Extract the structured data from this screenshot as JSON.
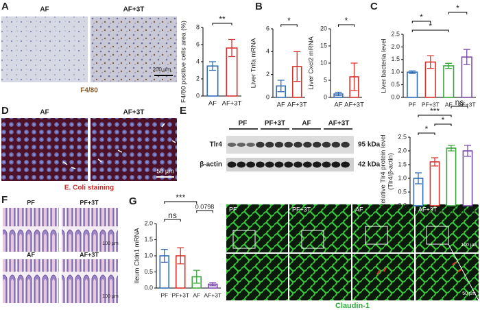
{
  "panels": {
    "letters": [
      "A",
      "B",
      "C",
      "D",
      "E",
      "F",
      "G"
    ]
  },
  "images": {
    "A": {
      "labels": [
        "AF",
        "AF+3T"
      ],
      "scale": "200 µm",
      "caption": "F4/80"
    },
    "D": {
      "labels": [
        "AF",
        "AF+3T"
      ],
      "scale": "50 µm",
      "caption": "E. Coli staining"
    },
    "E": {
      "lanes": [
        "PF",
        "PF+3T",
        "AF",
        "AF+3T"
      ],
      "proteins": [
        "Tlr4",
        "β-actin"
      ],
      "sizes": [
        "95 kDa",
        "42 kDa"
      ]
    },
    "F": {
      "labels": [
        "PF",
        "PF+3T",
        "AF",
        "AF+3T"
      ],
      "scales": [
        "100 µm",
        "100 µm"
      ]
    },
    "G": {
      "labels": [
        "PF",
        "PF+3T",
        "AF",
        "AF+3T"
      ],
      "scales": [
        "100 µm",
        "50 µm"
      ],
      "caption": "Claudin-1"
    }
  },
  "chart_data": [
    {
      "type": "bar",
      "y_label": "F4/80 positive cells area (%)",
      "categories": [
        "AF",
        "AF+3T"
      ],
      "values": [
        3.5,
        5.6
      ],
      "errors": [
        0.5,
        1.0
      ],
      "colors": [
        "#2f6db5",
        "#d7312b"
      ],
      "ylim": [
        0,
        8
      ],
      "yticks": [
        0,
        2,
        4,
        6,
        8
      ],
      "annotations": [
        {
          "text": "**",
          "from": "AF",
          "to": "AF+3T"
        }
      ]
    },
    {
      "type": "bar",
      "y_label": "Liver Tnfa mRNA",
      "categories": [
        "AF",
        "AF+3T"
      ],
      "values": [
        1.0,
        2.7
      ],
      "errors": [
        0.5,
        1.3
      ],
      "colors": [
        "#2f6db5",
        "#d7312b"
      ],
      "ylim": [
        0,
        6
      ],
      "yticks": [
        0,
        2,
        4,
        6
      ],
      "annotations": [
        {
          "text": "*",
          "from": "AF",
          "to": "AF+3T"
        }
      ]
    },
    {
      "type": "bar",
      "y_label": "Liver Cxcl2 mRNA",
      "categories": [
        "AF",
        "AF+3T"
      ],
      "values": [
        1.0,
        6.0
      ],
      "errors": [
        0.5,
        4.0
      ],
      "colors": [
        "#2f6db5",
        "#d7312b"
      ],
      "ylim": [
        0,
        20
      ],
      "yticks": [
        0,
        5,
        10,
        15,
        20
      ],
      "annotations": [
        {
          "text": "*",
          "from": "AF",
          "to": "AF+3T"
        }
      ]
    },
    {
      "type": "bar",
      "y_label": "Liver bacteria level",
      "categories": [
        "PF",
        "PF+3T",
        "AF",
        "AF+3T"
      ],
      "values": [
        1.0,
        1.4,
        1.25,
        1.6
      ],
      "errors": [
        0.05,
        0.25,
        0.1,
        0.3
      ],
      "colors": [
        "#2f6db5",
        "#d7312b",
        "#3aa63a",
        "#7a4aa6"
      ],
      "ylim": [
        0,
        2.5
      ],
      "yticks": [
        {
          "value": 0,
          "label": "0.0"
        },
        0.5,
        {
          "value": 1,
          "label": "1.0"
        },
        1.5,
        {
          "value": 2,
          "label": "2.0"
        },
        2.5
      ],
      "annotations": [
        {
          "text": "*",
          "from": "PF",
          "to": "AF"
        },
        {
          "text": "*",
          "from": "PF",
          "to": "PF+3T"
        },
        {
          "text": "*",
          "from": "AF",
          "to": "AF+3T"
        }
      ]
    },
    {
      "type": "bar",
      "y_label": [
        "Relative Tlr4 protein level",
        "(Tlr4/β-actin)"
      ],
      "categories": [
        "PF",
        "PF+3T",
        "AF",
        "AF+3T"
      ],
      "values": [
        1.0,
        1.6,
        2.1,
        2.0
      ],
      "errors": [
        0.2,
        0.15,
        0.1,
        0.2
      ],
      "colors": [
        "#2f6db5",
        "#d7312b",
        "#3aa63a",
        "#7a4aa6"
      ],
      "ylim": [
        0,
        2.5
      ],
      "yticks": [
        {
          "value": 0,
          "label": "0.0"
        },
        0.5,
        {
          "value": 1,
          "label": "1.0"
        },
        1.5,
        {
          "value": 2,
          "label": "2.0"
        },
        2.5
      ],
      "annotations": [
        {
          "text": "*",
          "from": "PF",
          "to": "PF+3T"
        },
        {
          "text": "*",
          "from": "PF+3T",
          "to": "AF"
        },
        {
          "text": "***",
          "from": "PF",
          "to": "AF"
        },
        {
          "text": "ns",
          "from": "AF",
          "to": "AF+3T"
        }
      ]
    },
    {
      "type": "bar",
      "y_label": "Ileum Cldn1 mRNA",
      "categories": [
        "PF",
        "PF+3T",
        "AF",
        "AF+3T"
      ],
      "values": [
        1.0,
        1.0,
        0.35,
        0.12
      ],
      "errors": [
        0.2,
        0.25,
        0.2,
        0.05
      ],
      "colors": [
        "#2f6db5",
        "#d7312b",
        "#3aa63a",
        "#7a4aa6"
      ],
      "ylim": [
        0,
        2
      ],
      "yticks": [
        {
          "value": 0,
          "label": "0.0"
        },
        0.5,
        {
          "value": 1,
          "label": "1.0"
        },
        1.5,
        {
          "value": 2,
          "label": "2.0"
        }
      ],
      "annotations": [
        {
          "text": "ns",
          "from": "PF",
          "to": "PF+3T"
        },
        {
          "text": "0.0798",
          "from": "AF",
          "to": "AF+3T"
        },
        {
          "text": "***",
          "from": "PF",
          "to": "AF"
        }
      ]
    }
  ]
}
